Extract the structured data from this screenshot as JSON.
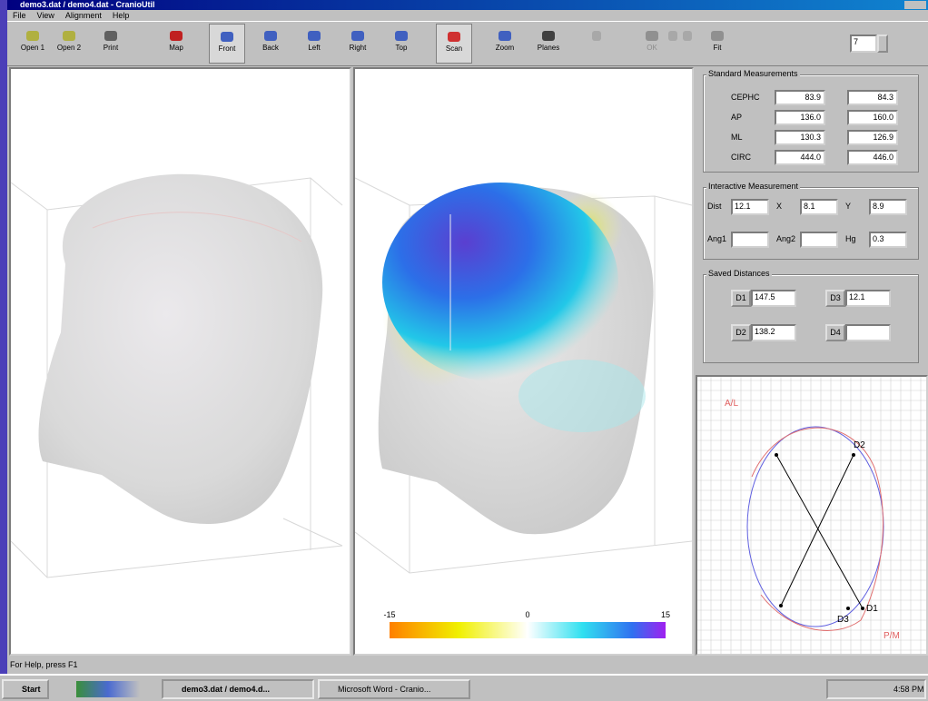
{
  "window": {
    "title": "demo3.dat / demo4.dat - CranioUtil",
    "menu": [
      "File",
      "View",
      "Alignment",
      "Help"
    ]
  },
  "toolbar": {
    "buttons": [
      "Open 1",
      "Open 2",
      "Print",
      "Map",
      "Front",
      "Back",
      "Left",
      "Right",
      "Top",
      "Scan",
      "Zoom",
      "Planes",
      "OK",
      "Fit"
    ],
    "spinner": "7"
  },
  "colorbar": {
    "labels": [
      "-15",
      "0",
      "15"
    ]
  },
  "standard": {
    "title": "Standard Measurements",
    "rows": [
      [
        "CEPHC",
        "83.9",
        "84.3"
      ],
      [
        "AP",
        "136.0",
        "160.0"
      ],
      [
        "ML",
        "130.3",
        "126.9"
      ],
      [
        "CIRC",
        "444.0",
        "446.0"
      ]
    ]
  },
  "interactive": {
    "title": "Interactive Measurement",
    "fields": [
      {
        "label": "Dist",
        "value": "12.1"
      },
      {
        "label": "X",
        "value": "8.1"
      },
      {
        "label": "Y",
        "value": "8.9"
      },
      {
        "label": "Ang1"
      },
      {
        "label": "Ang2"
      },
      {
        "label": "Hg",
        "value": "0.3"
      }
    ]
  },
  "saved": {
    "title": "Saved Distances",
    "items": [
      {
        "label": "D1",
        "value": "147.5"
      },
      {
        "label": "D3",
        "value": "12.1"
      },
      {
        "label": "D2",
        "value": "138.2"
      },
      {
        "label": "D4"
      }
    ]
  },
  "plot": {
    "labels": [
      "A/L",
      "D2",
      "D1",
      "D3",
      "P/M"
    ]
  },
  "status": "For Help, press F1",
  "taskbar": {
    "start": "Start",
    "tasks": [
      "demo3.dat / demo4.d...",
      "Microsoft Word - Cranio..."
    ],
    "clock": "4:58 PM"
  }
}
